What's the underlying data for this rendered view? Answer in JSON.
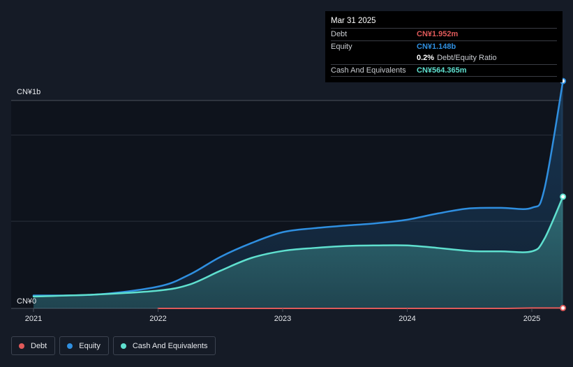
{
  "tooltip": {
    "date": "Mar 31 2025",
    "debt_label": "Debt",
    "debt_value": "CN¥1.952m",
    "equity_label": "Equity",
    "equity_value": "CN¥1.148b",
    "ratio_value": "0.2%",
    "ratio_label": "Debt/Equity Ratio",
    "cash_label": "Cash And Equivalents",
    "cash_value": "CN¥564.365m"
  },
  "legend": [
    {
      "label": "Debt",
      "color": "#e05a5a"
    },
    {
      "label": "Equity",
      "color": "#2f8fe0"
    },
    {
      "label": "Cash And Equivalents",
      "color": "#5fe0cf"
    }
  ],
  "chart_data": {
    "type": "area",
    "y_tick_labels": [
      "CN¥1b",
      "CN¥0"
    ],
    "x_tick_labels": [
      "2021",
      "2022",
      "2023",
      "2024",
      "2025"
    ],
    "ylim": [
      0,
      1.05
    ],
    "y_unit": "CN¥ billions",
    "series": [
      {
        "name": "Equity",
        "color": "#2f8fe0",
        "x": [
          2021.0,
          2021.5,
          2022.0,
          2022.25,
          2022.5,
          2022.75,
          2023.0,
          2023.25,
          2023.5,
          2023.75,
          2024.0,
          2024.25,
          2024.5,
          2024.75,
          2025.0,
          2025.1,
          2025.25
        ],
        "values": [
          0.065,
          0.07,
          0.11,
          0.17,
          0.26,
          0.33,
          0.385,
          0.405,
          0.418,
          0.43,
          0.448,
          0.48,
          0.505,
          0.508,
          0.508,
          0.6,
          1.148
        ]
      },
      {
        "name": "Cash And Equivalents",
        "color": "#5fe0cf",
        "x": [
          2021.0,
          2021.5,
          2022.0,
          2022.25,
          2022.5,
          2022.75,
          2023.0,
          2023.25,
          2023.5,
          2023.75,
          2024.0,
          2024.25,
          2024.5,
          2024.75,
          2025.0,
          2025.1,
          2025.25
        ],
        "values": [
          0.06,
          0.07,
          0.09,
          0.12,
          0.19,
          0.255,
          0.29,
          0.305,
          0.315,
          0.318,
          0.318,
          0.305,
          0.29,
          0.288,
          0.288,
          0.35,
          0.564
        ]
      },
      {
        "name": "Debt",
        "color": "#e05a5a",
        "x": [
          2022.0,
          2023.0,
          2024.0,
          2024.75,
          2025.0,
          2025.25
        ],
        "values": [
          0.0,
          0.0,
          0.0,
          0.0,
          0.002,
          0.002
        ]
      }
    ]
  }
}
